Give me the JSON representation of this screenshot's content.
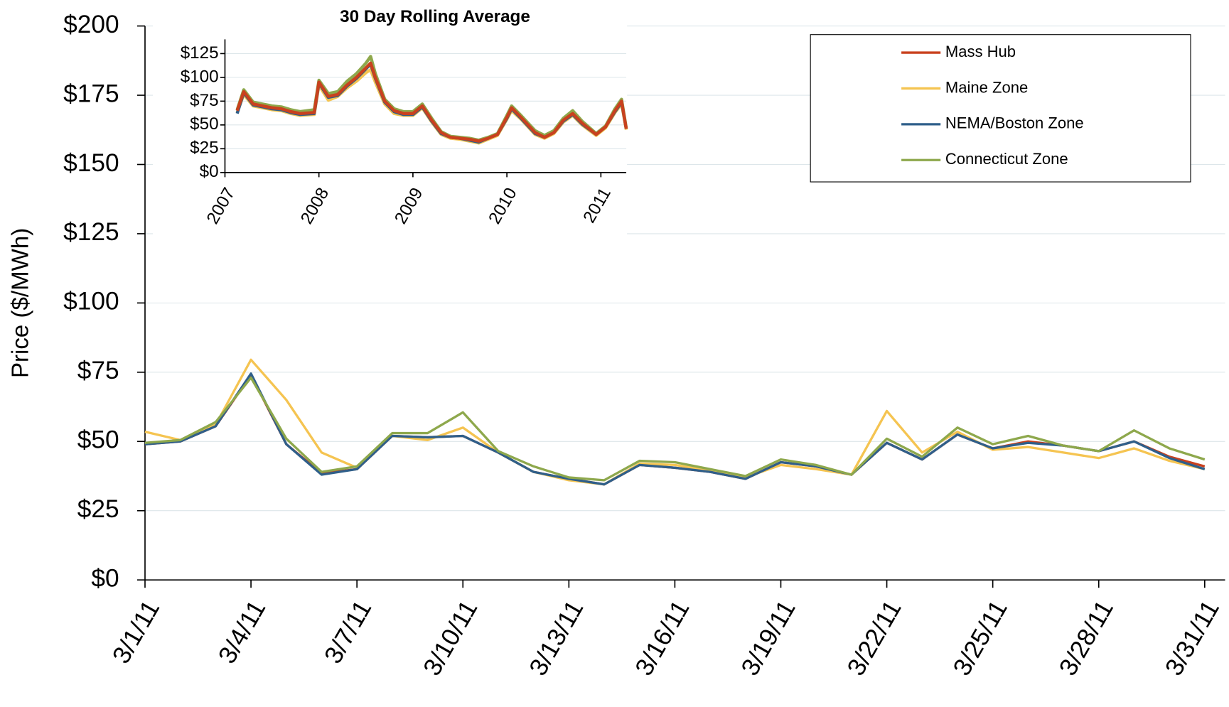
{
  "chart_data": [
    {
      "type": "line",
      "y_label": "Price ($/MWh)",
      "categories": [
        "3/1/11",
        null,
        null,
        "3/4/11",
        null,
        null,
        "3/7/11",
        null,
        null,
        "3/10/11",
        null,
        null,
        "3/13/11",
        null,
        null,
        "3/16/11",
        null,
        null,
        "3/19/11",
        null,
        null,
        "3/22/11",
        null,
        null,
        "3/25/11",
        null,
        null,
        "3/28/11",
        null,
        null,
        "3/31/11"
      ],
      "series": [
        {
          "name": "Mass Hub",
          "color": "#c9411e",
          "values": [
            49,
            50,
            55.5,
            74,
            49,
            38.5,
            40,
            52,
            51.5,
            52,
            46,
            39,
            36.5,
            34.5,
            41.5,
            40.5,
            39,
            36.5,
            42.5,
            41,
            38,
            49.5,
            43.5,
            52.5,
            47.5,
            50,
            48.5,
            46.5,
            50,
            44.5,
            41
          ]
        },
        {
          "name": "Maine Zone",
          "color": "#f5c451",
          "values": [
            53.5,
            50.5,
            56,
            79.5,
            65,
            46,
            40.5,
            52,
            50.5,
            55,
            46,
            39,
            36,
            34.5,
            42,
            41.5,
            39.5,
            37,
            41.5,
            40,
            38,
            61,
            46,
            53.5,
            47,
            48,
            46,
            44,
            47.5,
            43,
            40
          ]
        },
        {
          "name": "NEMA/Boston Zone",
          "color": "#2f5f8a",
          "values": [
            49,
            50,
            55.5,
            74.5,
            49,
            38,
            40,
            52,
            51.5,
            52,
            46,
            39,
            36.5,
            34.5,
            41.5,
            40.5,
            39,
            36.5,
            42.5,
            41,
            38,
            49.5,
            43.5,
            52.5,
            47.5,
            49.5,
            48.5,
            46.5,
            50,
            44,
            40
          ]
        },
        {
          "name": "Connecticut Zone",
          "color": "#8ea84c",
          "values": [
            49.5,
            50.5,
            57,
            73,
            51,
            39,
            41,
            53,
            53,
            60.5,
            46.5,
            41,
            37,
            36,
            43,
            42.5,
            40,
            37.5,
            43.5,
            41.5,
            38,
            51,
            44.5,
            55,
            49,
            52,
            48.5,
            46.5,
            54,
            47.5,
            43.5
          ]
        }
      ],
      "ylim": [
        0,
        200
      ],
      "yticks": [
        {
          "value": 0,
          "label": "$0"
        },
        {
          "value": 25,
          "label": "$25"
        },
        {
          "value": 50,
          "label": "$50"
        },
        {
          "value": 75,
          "label": "$75"
        },
        {
          "value": 100,
          "label": "$100"
        },
        {
          "value": 125,
          "label": "$125"
        },
        {
          "value": 150,
          "label": "$150"
        },
        {
          "value": 175,
          "label": "$175"
        },
        {
          "value": 200,
          "label": "$200"
        }
      ],
      "grid": true,
      "legend": "top-right"
    },
    {
      "type": "line",
      "title": "30 Day Rolling Average",
      "x": [
        2007.13,
        2007.2,
        2007.3,
        2007.4,
        2007.5,
        2007.6,
        2007.7,
        2007.8,
        2007.95,
        2008.0,
        2008.1,
        2008.2,
        2008.3,
        2008.4,
        2008.5,
        2008.55,
        2008.6,
        2008.7,
        2008.8,
        2008.9,
        2009.0,
        2009.1,
        2009.2,
        2009.3,
        2009.4,
        2009.5,
        2009.6,
        2009.7,
        2009.8,
        2009.9,
        2010.0,
        2010.05,
        2010.15,
        2010.3,
        2010.4,
        2010.5,
        2010.6,
        2010.7,
        2010.8,
        2010.95,
        2011.05,
        2011.15,
        2011.22,
        2011.27
      ],
      "series": [
        {
          "color": "#f5c451",
          "values": [
            63,
            82,
            70,
            68,
            66,
            65,
            62,
            60,
            61,
            92,
            76,
            80,
            89,
            96,
            105,
            108,
            95,
            72,
            62,
            60,
            60,
            68,
            53,
            40,
            36,
            35,
            33,
            31,
            35,
            39,
            56,
            65,
            56,
            40,
            36,
            41,
            53,
            60,
            50,
            39,
            47,
            63,
            72,
            45
          ]
        },
        {
          "color": "#2f5f8a",
          "values": [
            62,
            84,
            71,
            69,
            67,
            66,
            63,
            61,
            62,
            94,
            79,
            81,
            91,
            99,
            109,
            114,
            99,
            74,
            64,
            61,
            61,
            69,
            54,
            41,
            37,
            36,
            34,
            32,
            36,
            40,
            57,
            67,
            57,
            41,
            37,
            42,
            54,
            61,
            51,
            40,
            48,
            64,
            74,
            46
          ]
        },
        {
          "color": "#8ea84c",
          "values": [
            66,
            87,
            74,
            72,
            70,
            69,
            66,
            64,
            66,
            97,
            83,
            85,
            96,
            104,
            115,
            122,
            104,
            77,
            67,
            64,
            64,
            72,
            57,
            43,
            38,
            37,
            36,
            34,
            37,
            41,
            60,
            70,
            60,
            44,
            39,
            44,
            57,
            65,
            54,
            41,
            49,
            67,
            77,
            47
          ]
        },
        {
          "color": "#c9411e",
          "values": [
            65,
            85,
            72,
            70,
            68,
            67,
            64,
            62,
            63,
            95,
            80,
            82,
            92,
            100,
            110,
            115,
            100,
            75,
            65,
            62,
            62,
            70,
            55,
            42,
            37,
            36,
            35,
            33,
            36,
            40,
            58,
            68,
            58,
            42,
            37,
            42,
            55,
            62,
            52,
            40,
            48,
            65,
            75,
            46
          ]
        }
      ],
      "xlim": [
        2007,
        2011.27
      ],
      "xticks": [
        2007,
        2008,
        2009,
        2010,
        2011
      ],
      "ylim": [
        0,
        140
      ],
      "yticks": [
        {
          "value": 0,
          "label": "$0"
        },
        {
          "value": 25,
          "label": "$25"
        },
        {
          "value": 50,
          "label": "$50"
        },
        {
          "value": 75,
          "label": "$75"
        },
        {
          "value": 100,
          "label": "$100"
        },
        {
          "value": 125,
          "label": "$125"
        }
      ],
      "grid": true
    }
  ]
}
